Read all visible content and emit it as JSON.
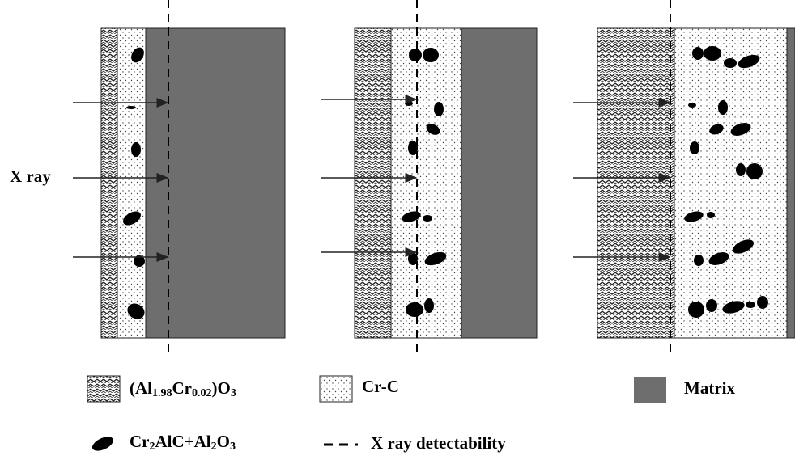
{
  "labels": {
    "x_ray": "X ray"
  },
  "legend": {
    "oxide": [
      "(Al",
      "1.98",
      "Cr",
      "0.02",
      ")O",
      "3"
    ],
    "cr_c": "Cr-C",
    "matrix": "Matrix",
    "particles": [
      "Cr",
      "2",
      "AlC+Al",
      "2",
      "O",
      "3"
    ],
    "detectability": "X ray detectability"
  }
}
